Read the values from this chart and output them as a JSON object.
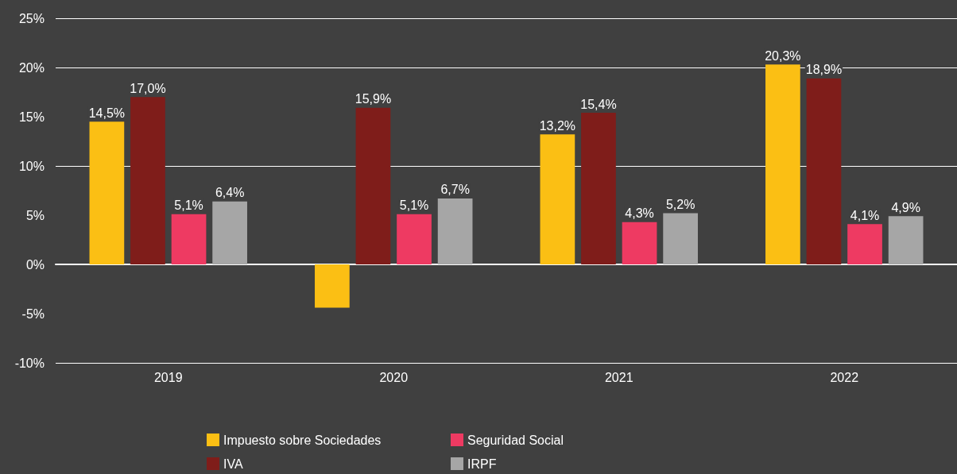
{
  "chart_data": {
    "type": "bar",
    "categories": [
      "2019",
      "2020",
      "2021",
      "2022"
    ],
    "series": [
      {
        "name": "Impuesto sobre Sociedades",
        "color": "#fbbf14",
        "values": [
          14.5,
          -4.4,
          13.2,
          20.3
        ],
        "value_labels": [
          "14,5%",
          null,
          "13,2%",
          "20,3%"
        ]
      },
      {
        "name": "IVA",
        "color": "#7f1d1a",
        "values": [
          17.0,
          15.9,
          15.4,
          18.9
        ],
        "value_labels": [
          "17,0%",
          "15,9%",
          "15,4%",
          "18,9%"
        ]
      },
      {
        "name": "Seguridad Social",
        "color": "#ee3a62",
        "values": [
          5.1,
          5.1,
          4.3,
          4.1
        ],
        "value_labels": [
          "5,1%",
          "5,1%",
          "4,3%",
          "4,1%"
        ]
      },
      {
        "name": "IRPF",
        "color": "#a6a6a6",
        "values": [
          6.4,
          6.7,
          5.2,
          4.9
        ],
        "value_labels": [
          "6,4%",
          "6,7%",
          "5,2%",
          "4,9%"
        ]
      }
    ],
    "ylim": [
      -10,
      25
    ],
    "yticks": [
      {
        "value": -10,
        "label": "-10%"
      },
      {
        "value": -5,
        "label": "-5%"
      },
      {
        "value": 0,
        "label": "0%"
      },
      {
        "value": 5,
        "label": "5%"
      },
      {
        "value": 10,
        "label": "10%"
      },
      {
        "value": 15,
        "label": "15%"
      },
      {
        "value": 20,
        "label": "20%"
      },
      {
        "value": 25,
        "label": "25%"
      }
    ],
    "grid": "y",
    "legend": "bottom"
  }
}
